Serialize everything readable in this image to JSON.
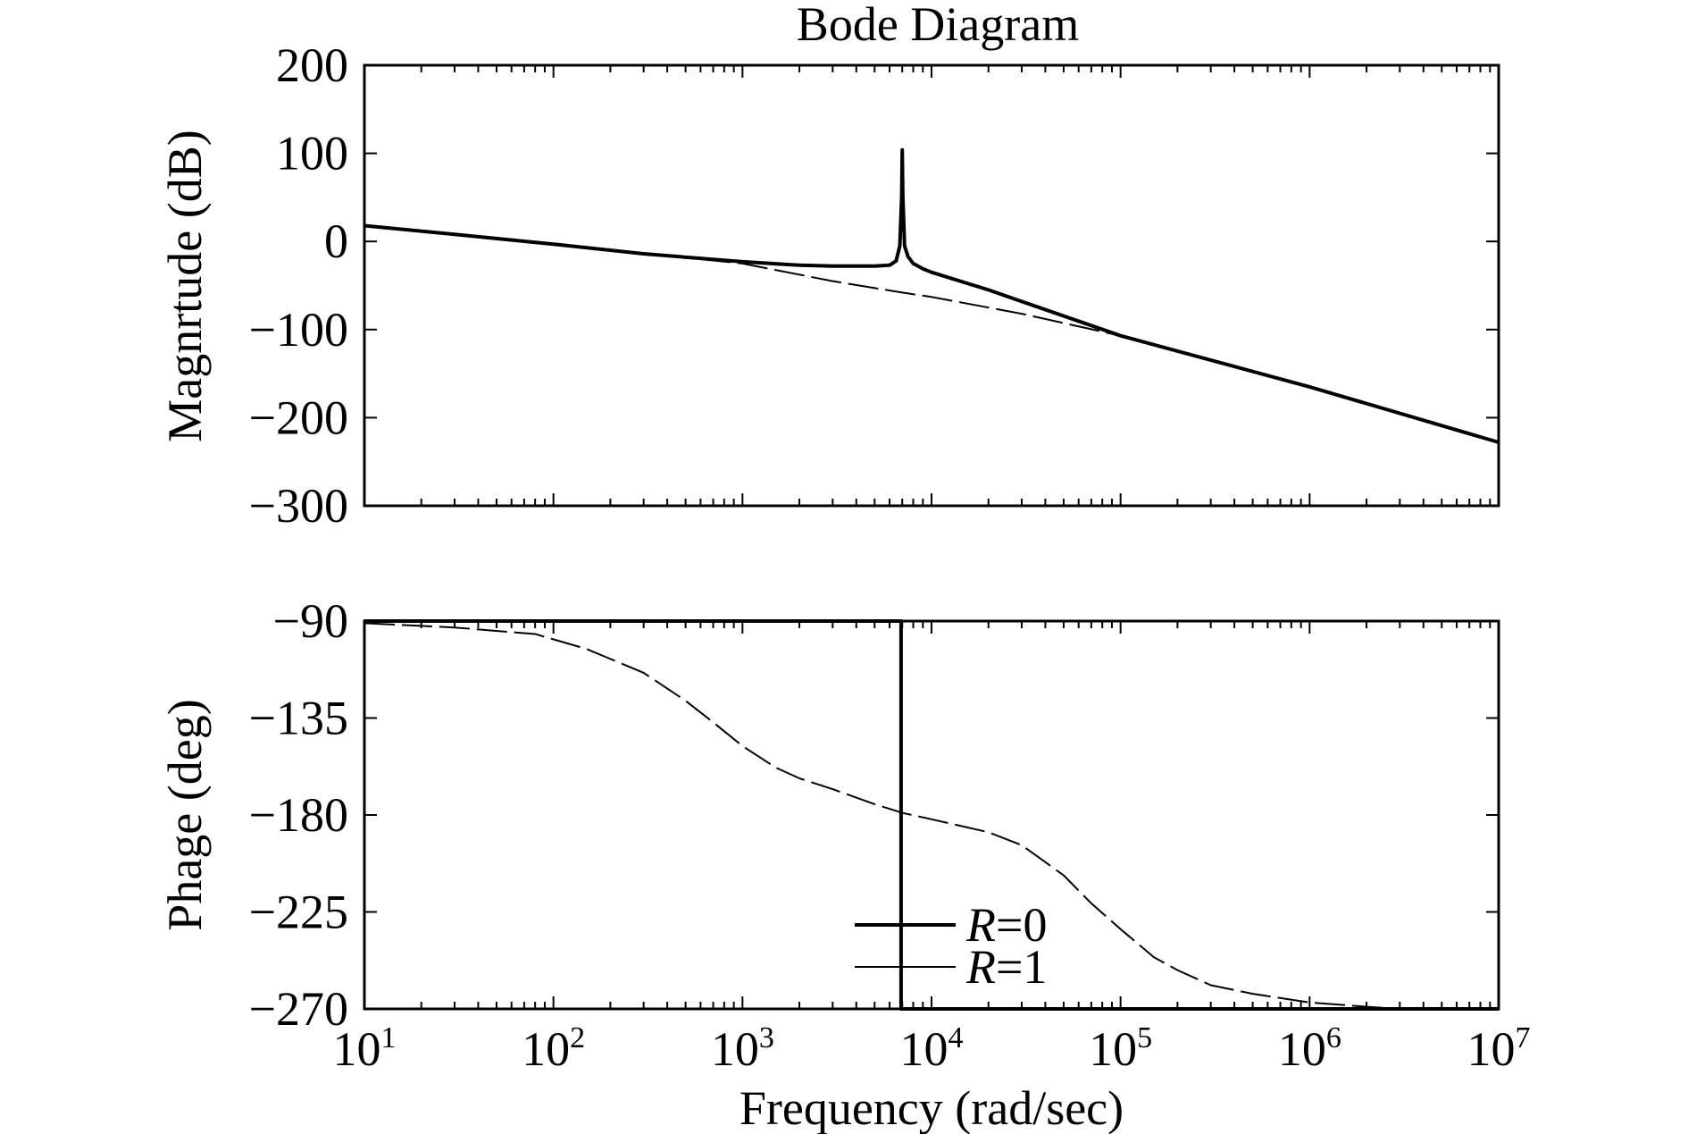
{
  "chart_data": [
    {
      "type": "line",
      "title": "Bode Diagram",
      "xlabel": "",
      "ylabel": "Magnrtude (dB)",
      "xscale": "log",
      "xlim": [
        10,
        10000000
      ],
      "ylim": [
        -300,
        200
      ],
      "yticks": [
        "200",
        "100",
        "0",
        "−100",
        "−200",
        "−300"
      ],
      "ytick_values": [
        200,
        100,
        0,
        -100,
        -200,
        -300
      ],
      "grid": false,
      "series": [
        {
          "name": "R=0",
          "style": "solid",
          "x": [
            10,
            30,
            100,
            300,
            1000,
            2000,
            3000,
            4000,
            5000,
            6000,
            6500,
            6800,
            6950,
            7000,
            7050,
            7200,
            7500,
            8000,
            9000,
            10000,
            20000,
            100000,
            1000000,
            10000000
          ],
          "y": [
            18,
            8,
            -3,
            -14,
            -23,
            -27,
            -28,
            -28,
            -28,
            -27,
            -22,
            -5,
            50,
            104,
            50,
            -5,
            -17,
            -25,
            -31,
            -35,
            -55,
            -107,
            -165,
            -228
          ]
        },
        {
          "name": "R=1",
          "style": "dashed",
          "x": [
            10,
            100,
            1000,
            3000,
            7000,
            10000,
            30000,
            100000,
            1000000,
            10000000
          ],
          "y": [
            18,
            -3,
            -25,
            -45,
            -58,
            -63,
            -82,
            -107,
            -165,
            -228
          ]
        }
      ]
    },
    {
      "type": "line",
      "title": "",
      "xlabel": "Frequency (rad/sec)",
      "ylabel": "Phage (deg)",
      "xscale": "log",
      "xlim": [
        10,
        10000000
      ],
      "ylim": [
        -270,
        -90
      ],
      "yticks": [
        "−90",
        "−135",
        "−180",
        "−225",
        "−270"
      ],
      "ytick_values": [
        -90,
        -135,
        -180,
        -225,
        -270
      ],
      "xticks": [
        "10",
        "10",
        "10",
        "10",
        "10",
        "10",
        "10"
      ],
      "xtick_exponents": [
        "1",
        "2",
        "3",
        "4",
        "5",
        "6",
        "7"
      ],
      "xtick_values": [
        10,
        100,
        1000,
        10000,
        100000,
        1000000,
        10000000
      ],
      "grid": false,
      "legend": {
        "placement": "bottom-center",
        "entries": [
          {
            "italic": "R",
            "rest": "=0"
          },
          {
            "italic": "R",
            "rest": "=1"
          }
        ]
      },
      "series": [
        {
          "name": "R=0",
          "style": "solid",
          "x": [
            10,
            6900,
            6900,
            6900,
            10000000
          ],
          "y": [
            -90,
            -90,
            -212,
            -270,
            -270
          ]
        },
        {
          "name": "R=1",
          "style": "dashed",
          "x": [
            10,
            30,
            80,
            150,
            300,
            500,
            700,
            1000,
            1500,
            2000,
            3000,
            5000,
            7000,
            10000,
            20000,
            30000,
            50000,
            70000,
            100000,
            150000,
            200000,
            300000,
            500000,
            1000000,
            2000000,
            3000000
          ],
          "y": [
            -91,
            -93,
            -96,
            -103,
            -114,
            -127,
            -137,
            -148,
            -158,
            -163,
            -168,
            -175,
            -179,
            -182,
            -188,
            -194,
            -208,
            -221,
            -233,
            -246,
            -252,
            -259,
            -263,
            -267,
            -269,
            -270
          ]
        }
      ]
    }
  ]
}
